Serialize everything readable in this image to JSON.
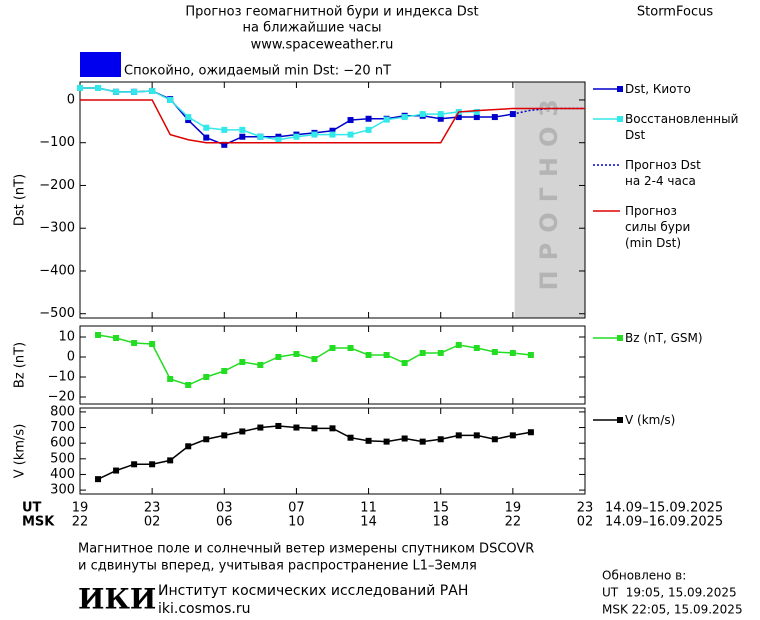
{
  "header": {
    "title": "Прогноз геомагнитной бури и индекса Dst",
    "subtitle": "на ближайшие часы",
    "url": "www.spaceweather.ru",
    "brand": "StormFocus",
    "status": {
      "text": "Спокойно, ожидаемый min Dst: −20 nT",
      "color": "#0000ee"
    }
  },
  "chart_data": [
    {
      "type": "line",
      "y_label": "Dst (nT)",
      "xlim": [
        0,
        28
      ],
      "xticks": [
        0,
        4,
        8,
        12,
        16,
        20,
        24,
        28
      ],
      "ylim": [
        -510,
        42
      ],
      "yticks": [
        {
          "value": 0,
          "label": "0"
        },
        {
          "value": -100,
          "label": "−100"
        },
        {
          "value": -200,
          "label": "−200"
        },
        {
          "value": -300,
          "label": "−300"
        },
        {
          "value": -400,
          "label": "−400"
        },
        {
          "value": -500,
          "label": "−500"
        }
      ],
      "forecast_region": {
        "x": [
          24.1,
          28
        ],
        "label": "ПРОГНОЗ",
        "color": "#d4d4d4"
      },
      "series": [
        {
          "name": "Dst, Киото",
          "color": "#0000cc",
          "marker": "square",
          "x": [
            0,
            1,
            2,
            3,
            4,
            5,
            6,
            7,
            8,
            9,
            10,
            11,
            12,
            13,
            14,
            15,
            16,
            17,
            18,
            19,
            20,
            21,
            22,
            23,
            24
          ],
          "values": [
            28,
            28,
            19,
            19,
            21,
            2,
            -47,
            -88,
            -105,
            -86,
            -86,
            -86,
            -81,
            -77,
            -72,
            -47,
            -44,
            -44,
            -37,
            -37,
            -44,
            -40,
            -40,
            -40,
            -33
          ]
        },
        {
          "name": "Восстановленный\nDst",
          "color": "#33e8e8",
          "marker": "square",
          "x": [
            0,
            1,
            2,
            3,
            4,
            5,
            6,
            7,
            8,
            9,
            10,
            11,
            12,
            13,
            14,
            15,
            16,
            17,
            18,
            19,
            20,
            21,
            22
          ],
          "values": [
            28,
            28,
            19,
            19,
            21,
            0,
            -40,
            -65,
            -70,
            -70,
            -86,
            -93,
            -86,
            -81,
            -81,
            -81,
            -70,
            -46,
            -40,
            -33,
            -33,
            -28,
            -28
          ]
        },
        {
          "name": "Прогноз Dst\nна 2-4 часа",
          "color": "#0000cc",
          "dash": "2,2",
          "x": [
            24,
            25,
            26,
            27,
            28
          ],
          "values": [
            -33,
            -24,
            -20,
            -20,
            -20
          ]
        },
        {
          "name": "Прогноз\nсилы бури\n(min Dst)",
          "color": "#dd0000",
          "x": [
            0,
            4,
            5,
            6,
            7,
            20,
            21,
            22,
            24,
            28
          ],
          "values": [
            0,
            0,
            -81,
            -93,
            -100,
            -100,
            -28,
            -25,
            -20,
            -20
          ]
        }
      ]
    },
    {
      "type": "line",
      "y_label": "Bz (nT)",
      "xlim": [
        0,
        28
      ],
      "xticks": [
        0,
        4,
        8,
        12,
        16,
        20,
        24,
        28
      ],
      "ylim": [
        -23.5,
        15.5
      ],
      "yticks": [
        10,
        0,
        {
          "value": -10,
          "label": "−10"
        },
        {
          "value": -20,
          "label": "−20"
        }
      ],
      "series": [
        {
          "name": "Bz (nT, GSM)",
          "color": "#22dd22",
          "marker": "square",
          "x": [
            1,
            2,
            3,
            4,
            5,
            6,
            7,
            8,
            9,
            10,
            11,
            12,
            13,
            14,
            15,
            16,
            17,
            18,
            19,
            20,
            21,
            22,
            23,
            24,
            25
          ],
          "values": [
            11,
            9.5,
            7,
            6.5,
            -11,
            -14,
            -10,
            -7,
            -2.5,
            -4,
            0,
            1.5,
            -1,
            4.5,
            4.5,
            1,
            1,
            -3,
            2,
            2,
            6,
            4.5,
            2.5,
            2,
            1
          ]
        }
      ]
    },
    {
      "type": "line",
      "y_label": "V (km/s)",
      "xlim": [
        0,
        28
      ],
      "ylim": [
        275,
        825
      ],
      "yticks": [
        300,
        400,
        500,
        600,
        700,
        800
      ],
      "xticks": [
        {
          "value": 0,
          "label": "19"
        },
        {
          "value": 4,
          "label": "23"
        },
        {
          "value": 8,
          "label": "03"
        },
        {
          "value": 12,
          "label": "07"
        },
        {
          "value": 16,
          "label": "11"
        },
        {
          "value": 20,
          "label": "15"
        },
        {
          "value": 24,
          "label": "19"
        },
        {
          "value": 28,
          "label": "23"
        }
      ],
      "xticks_msk": [
        {
          "value": 0,
          "label": "22"
        },
        {
          "value": 4,
          "label": "02"
        },
        {
          "value": 8,
          "label": "06"
        },
        {
          "value": 12,
          "label": "10"
        },
        {
          "value": 16,
          "label": "14"
        },
        {
          "value": 20,
          "label": "18"
        },
        {
          "value": 24,
          "label": "22"
        },
        {
          "value": 28,
          "label": "02"
        }
      ],
      "x_row_labels": [
        "UT",
        "MSK"
      ],
      "date_ranges": [
        "14.09–15.09.2025",
        "14.09–16.09.2025"
      ],
      "series": [
        {
          "name": "V (km/s)",
          "color": "#000000",
          "marker": "square",
          "x": [
            1,
            2,
            3,
            4,
            5,
            6,
            7,
            8,
            9,
            10,
            11,
            12,
            13,
            14,
            15,
            16,
            17,
            18,
            19,
            20,
            21,
            22,
            23,
            24,
            25
          ],
          "values": [
            370,
            425,
            465,
            465,
            490,
            580,
            625,
            650,
            675,
            700,
            710,
            700,
            695,
            695,
            635,
            615,
            610,
            630,
            610,
            625,
            650,
            650,
            625,
            650,
            670
          ]
        }
      ]
    }
  ],
  "footer": {
    "notes": [
      "Магнитное поле и солнечный ветер измерены спутником DSCOVR",
      "и сдвинуты вперед, учитывая распространение L1–Земля"
    ],
    "logo": "ИКИ",
    "institute": "Институт космических исследований РАН",
    "institute_url": "iki.cosmos.ru",
    "updated_label": "Обновлено в:",
    "updated_ut": "UT  19:05, 15.09.2025",
    "updated_msk": "MSK 22:05, 15.09.2025"
  }
}
